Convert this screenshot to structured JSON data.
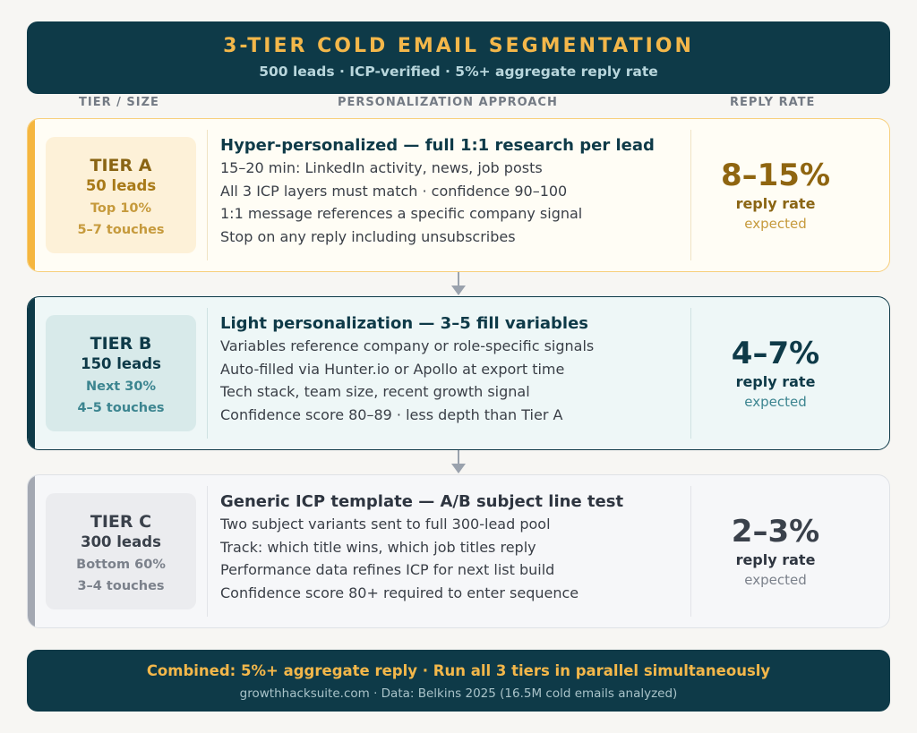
{
  "header": {
    "title": "3-TIER COLD EMAIL SEGMENTATION",
    "subtitle": "500 leads · ICP-verified · 5%+ aggregate reply rate"
  },
  "columns": {
    "tier_size": "TIER / SIZE",
    "approach": "PERSONALIZATION APPROACH",
    "reply_rate": "REPLY RATE"
  },
  "colors": {
    "navy": "#0e3a48",
    "gold": "#f3b74a",
    "tier_a_accent": "#f5b63f",
    "tier_b_accent": "#0e3a48",
    "tier_c_accent": "#a3a8b2"
  },
  "tiers": [
    {
      "name": "TIER A",
      "leads": "50 leads",
      "percent": "Top 10%",
      "touches": "5–7 touches",
      "headline": "Hyper-personalized — full 1:1 research per lead",
      "lines": [
        "15–20 min: LinkedIn activity, news, job posts",
        "All 3 ICP layers must match · confidence 90–100",
        "1:1 message references a specific company signal",
        "Stop on any reply including unsubscribes"
      ],
      "rate": "8–15%",
      "rate_label": "reply rate",
      "rate_note": "expected"
    },
    {
      "name": "TIER B",
      "leads": "150 leads",
      "percent": "Next 30%",
      "touches": "4–5 touches",
      "headline": "Light personalization — 3–5 fill variables",
      "lines": [
        "Variables reference company or role-specific signals",
        "Auto-filled via Hunter.io or Apollo at export time",
        "Tech stack, team size, recent growth signal",
        "Confidence score 80–89 · less depth than Tier A"
      ],
      "rate": "4–7%",
      "rate_label": "reply rate",
      "rate_note": "expected"
    },
    {
      "name": "TIER C",
      "leads": "300 leads",
      "percent": "Bottom 60%",
      "touches": "3–4 touches",
      "headline": "Generic ICP template — A/B subject line test",
      "lines": [
        "Two subject variants sent to full 300-lead pool",
        "Track: which title wins, which job titles reply",
        "Performance data refines ICP for next list build",
        "Confidence score 80+ required to enter sequence"
      ],
      "rate": "2–3%",
      "rate_label": "reply rate",
      "rate_note": "expected"
    }
  ],
  "footer": {
    "summary": "Combined: 5%+ aggregate reply · Run all 3 tiers in parallel simultaneously",
    "source": "growthhacksuite.com · Data: Belkins 2025 (16.5M cold emails analyzed)"
  }
}
